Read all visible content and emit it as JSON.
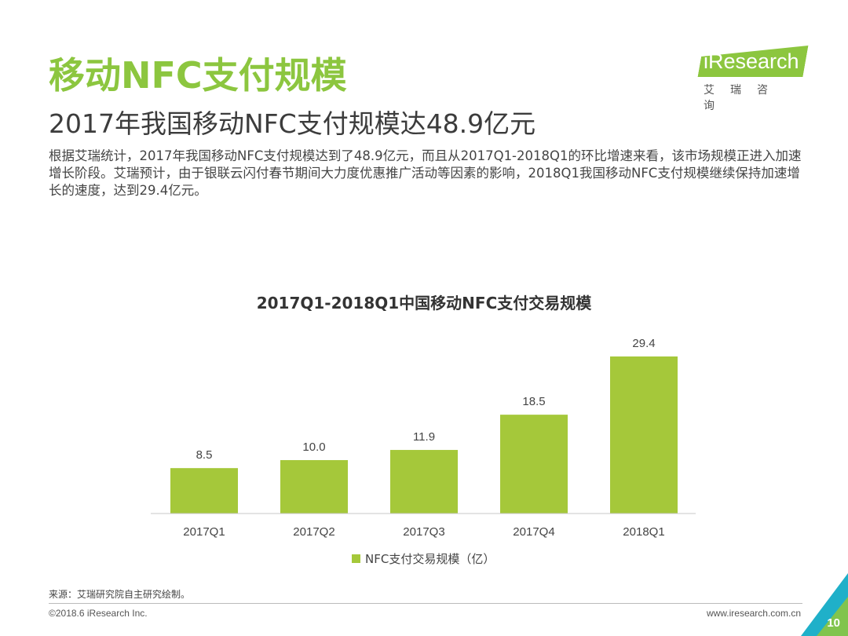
{
  "header": {
    "title": "移动NFC支付规模",
    "subtitle": "2017年我国移动NFC支付规模达48.9亿元",
    "body": "根据艾瑞统计，2017年我国移动NFC支付规模达到了48.9亿元，而且从2017Q1-2018Q1的环比增速来看，该市场规模正进入加速增长阶段。艾瑞预计，由于银联云闪付春节期间大力度优惠推广活动等因素的影响，2018Q1我国移动NFC支付规模继续保持加速增长的速度，达到29.4亿元。"
  },
  "logo": {
    "text": "iResearch",
    "cn": "艾瑞咨询"
  },
  "chart_data": {
    "type": "bar",
    "title": "2017Q1-2018Q1中国移动NFC支付交易规模",
    "categories": [
      "2017Q1",
      "2017Q2",
      "2017Q3",
      "2017Q4",
      "2018Q1"
    ],
    "series": [
      {
        "name": "NFC支付交易规模（亿）",
        "values": [
          8.5,
          10.0,
          11.9,
          18.5,
          29.4
        ],
        "labels": [
          "8.5",
          "10.0",
          "11.9",
          "18.5",
          "29.4"
        ]
      }
    ],
    "bar_color": "#a5c83a",
    "grid": false,
    "legend_position": "bottom"
  },
  "footer": {
    "source": "来源：艾瑞研究院自主研究绘制。",
    "copyright": "©2018.6 iResearch Inc.",
    "website": "www.iresearch.com.cn",
    "page_number": "10"
  },
  "colors": {
    "accent": "#8cc63f",
    "corner": "#1fb0c9"
  }
}
